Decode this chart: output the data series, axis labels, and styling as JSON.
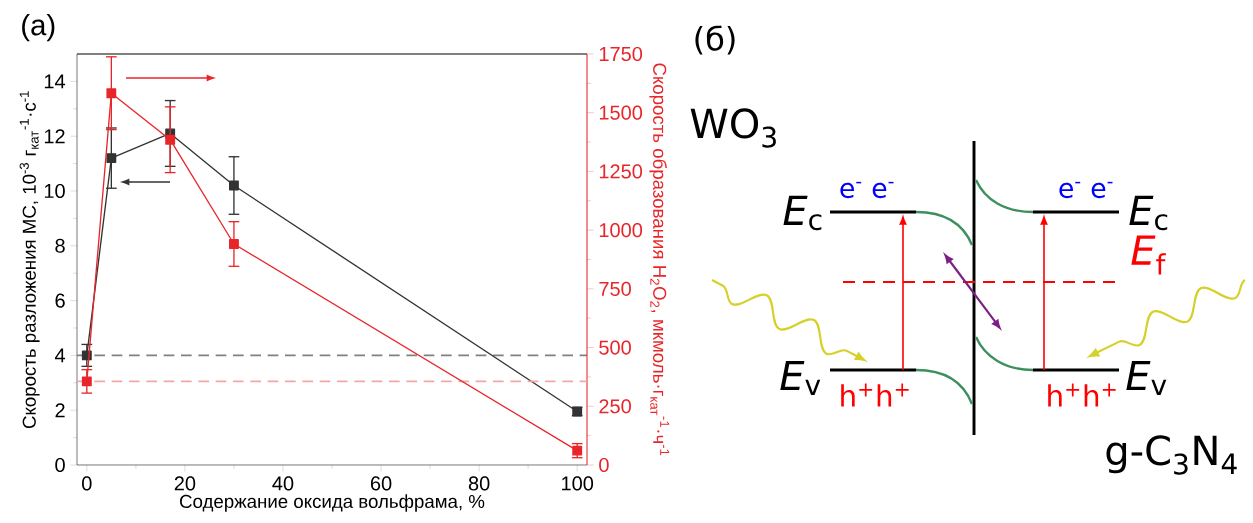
{
  "chart_data": [
    {
      "type": "line",
      "title": "(a)",
      "xlabel": "Содержание оксида вольфрама, %",
      "ylabel": "Скорость разложения МС, 10$^{-3}$ г$_{кат}$$^{-1}$·с$^{-1}$",
      "y2label": "Скорость образования H$_{2}$O$_{2}$, мкмоль·г$_{кат}$$^{-1}$·ч$^{-1}$",
      "x": [
        0,
        5,
        17,
        30,
        100
      ],
      "series": [
        {
          "color": "#333333",
          "values": [
            4.0,
            11.2,
            12.1,
            10.2,
            1.95
          ],
          "errors": [
            0.4,
            1.1,
            1.2,
            1.05,
            0.15
          ]
        },
        {
          "color": "#e8262a",
          "axis": "y2",
          "values": [
            356,
            1583,
            1385,
            941,
            61
          ],
          "errors": [
            50,
            155,
            140,
            95,
            30
          ]
        }
      ],
      "xlim": [
        -2,
        102
      ],
      "xticks": [
        0,
        20,
        40,
        60,
        80,
        100
      ],
      "ylim": [
        0,
        15
      ],
      "yticks": [
        0,
        2,
        4,
        6,
        8,
        10,
        12,
        14
      ],
      "y2lim": [
        0,
        1750
      ],
      "y2ticks": [
        0,
        250,
        500,
        750,
        1000,
        1250,
        1500,
        1750
      ],
      "ref_lines": [
        {
          "axis": "y",
          "value": 4,
          "color": "#808080",
          "line_style": "dashed"
        },
        {
          "axis": "y2",
          "value": 356,
          "color": "#f4a6a6",
          "line_style": "dashed"
        }
      ],
      "marker": "square",
      "line_style": "solid",
      "grid": false
    },
    {
      "type": "other",
      "title": "(б)",
      "annotations": [
        "WO$_{3}$",
        "*E*$_{c}$",
        "e$^{-}$ e$^{-}$",
        "e$^{-}$ e$^{-}$",
        "*E*$_{c}$",
        "*E*$_{f}$",
        "*E*$_{v}$",
        "h$^{+}$h$^{+}$",
        "h$^{+}$h$^{+}$",
        "*E*$_{v}$",
        "g-C$_{3}$N$_{4}$"
      ]
    }
  ]
}
